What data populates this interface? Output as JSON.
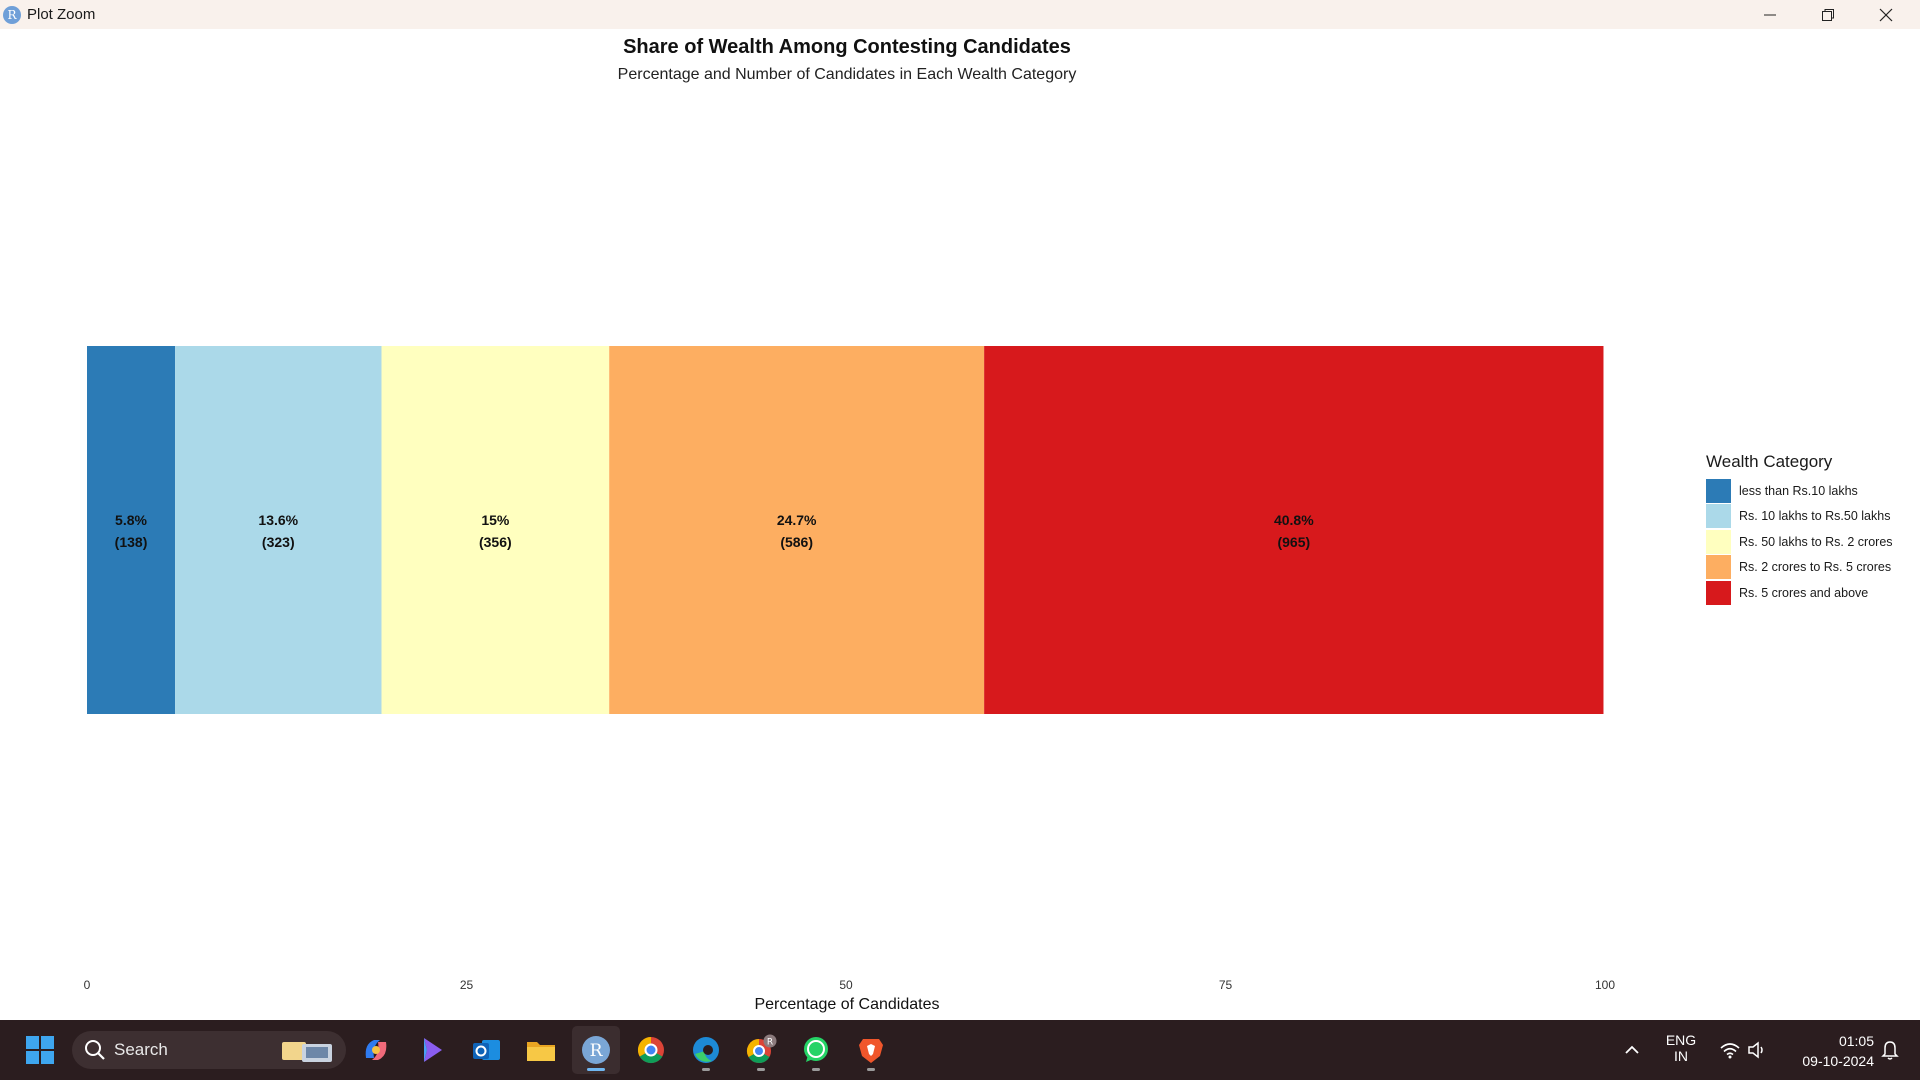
{
  "window": {
    "title": "Plot Zoom",
    "app_icon_letter": "R",
    "controls": [
      "minimize-icon",
      "restore-icon",
      "close-icon"
    ]
  },
  "chart_data": {
    "type": "bar",
    "orientation": "horizontal-stacked",
    "title": "Share of Wealth Among Contesting Candidates",
    "subtitle": "Percentage and Number of Candidates in Each Wealth Category",
    "xlabel": "Percentage of Candidates",
    "ylabel": "",
    "xlim": [
      0,
      100
    ],
    "x_ticks": [
      "0",
      "25",
      "50",
      "75",
      "100"
    ],
    "grid": false,
    "legend_title": "Wealth Category",
    "legend_position": "right",
    "series": [
      {
        "name": "less than Rs.10 lakhs",
        "percent": 5.8,
        "percent_label": "5.8%",
        "count_label": "(138)",
        "color": "#2c7bb6"
      },
      {
        "name": "Rs. 10 lakhs to Rs.50 lakhs",
        "percent": 13.6,
        "percent_label": "13.6%",
        "count_label": "(323)",
        "color": "#abd9e9"
      },
      {
        "name": "Rs. 50 lakhs to Rs. 2 crores",
        "percent": 15,
        "percent_label": "15%",
        "count_label": "(356)",
        "color": "#ffffbf"
      },
      {
        "name": "Rs. 2 crores to Rs. 5 crores",
        "percent": 24.7,
        "percent_label": "24.7%",
        "count_label": "(586)",
        "color": "#fdae61"
      },
      {
        "name": "Rs. 5 crores and above",
        "percent": 40.8,
        "percent_label": "40.8%",
        "count_label": "(965)",
        "color": "#d7191c"
      }
    ]
  },
  "taskbar": {
    "search_label": "Search",
    "apps": [
      "copilot-icon",
      "bing-icon",
      "outlook-icon",
      "file-explorer-icon",
      "r-app-icon",
      "chrome-icon",
      "edge-icon",
      "chrome-profile-icon",
      "whatsapp-icon",
      "brave-icon"
    ],
    "language": "ENG",
    "region": "IN",
    "time": "01:05",
    "date": "09-10-2024"
  }
}
